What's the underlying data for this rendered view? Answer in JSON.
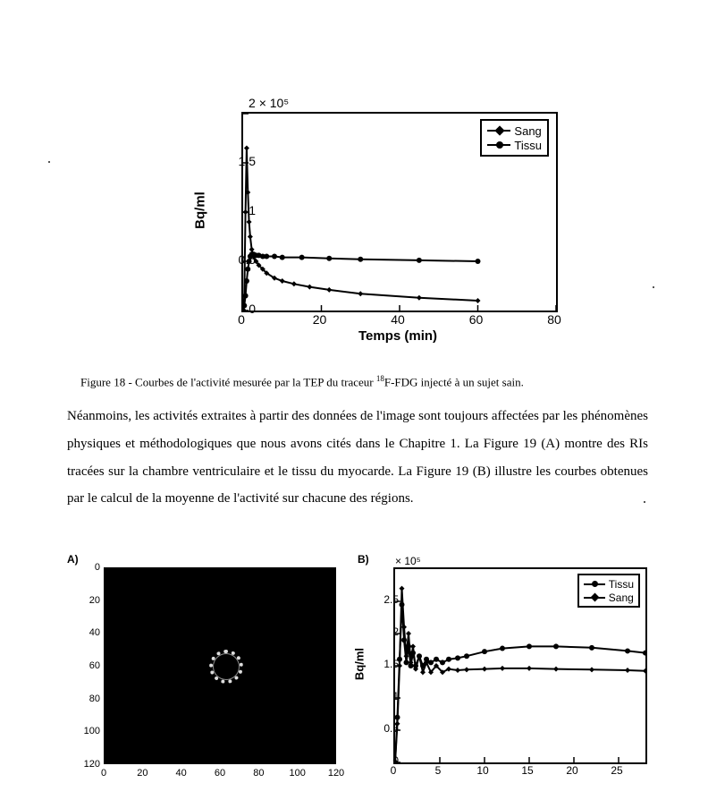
{
  "chart1": {
    "type": "line",
    "multiplier_text": "× 10⁵",
    "xlabel": "Temps (min)",
    "ylabel": "Bq/ml",
    "xlim": [
      0,
      80
    ],
    "ylim": [
      0,
      2
    ],
    "xticks": [
      0,
      20,
      40,
      60,
      80
    ],
    "yticks": [
      0,
      0.5,
      1,
      1.5,
      2
    ],
    "xtick_labels": [
      "0",
      "20",
      "40",
      "60",
      "80"
    ],
    "ytick_labels": [
      "0",
      "0.5",
      "1",
      "1.5",
      "2"
    ],
    "background_color": "#ffffff",
    "border_color": "#000000",
    "line_width": 2,
    "marker_size": 6,
    "series": [
      {
        "name": "Sang",
        "legend_label": "Sang",
        "color": "#000000",
        "marker": "diamond",
        "x": [
          0,
          0.3,
          0.6,
          0.9,
          1.2,
          1.5,
          1.8,
          2.2,
          2.7,
          3.3,
          4,
          5,
          6,
          8,
          10,
          13,
          17,
          22,
          30,
          45,
          60
        ],
        "y": [
          0,
          0.15,
          1.0,
          1.65,
          1.2,
          0.9,
          0.75,
          0.62,
          0.55,
          0.5,
          0.46,
          0.42,
          0.38,
          0.33,
          0.3,
          0.27,
          0.24,
          0.21,
          0.17,
          0.13,
          0.1
        ]
      },
      {
        "name": "Tissu",
        "legend_label": "Tissu",
        "color": "#000000",
        "marker": "dot",
        "x": [
          0,
          0.3,
          0.6,
          0.9,
          1.2,
          1.5,
          1.8,
          2.2,
          2.7,
          3.3,
          4,
          5,
          6,
          8,
          10,
          15,
          22,
          30,
          45,
          60
        ],
        "y": [
          0,
          0.05,
          0.15,
          0.3,
          0.42,
          0.5,
          0.55,
          0.57,
          0.57,
          0.56,
          0.56,
          0.55,
          0.55,
          0.55,
          0.54,
          0.54,
          0.53,
          0.52,
          0.51,
          0.5
        ]
      }
    ]
  },
  "caption1_prefix": "Figure 18 - Courbes de l'activité mesurée par la TEP du traceur ",
  "caption1_isotope": "18",
  "caption1_suffix": "F-FDG injecté à un sujet sain.",
  "body_text": "Néanmoins, les activités extraites à partir des données de l'image sont toujours affectées par les phénomènes physiques et méthodologiques que nous avons cités dans le Chapitre 1. La Figure 19 (A) montre des RIs tracées sur la chambre ventriculaire et le tissu du myocarde. La Figure 19 (B) illustre les courbes obtenues par le calcul de la moyenne de l'activité sur chacune des régions.",
  "panelA": {
    "label": "A)",
    "type": "image",
    "background_color": "#000000",
    "ring_color": "#dddddd",
    "xlim": [
      0,
      120
    ],
    "ylim": [
      0,
      120
    ],
    "xticks": [
      0,
      20,
      40,
      60,
      80,
      100,
      120
    ],
    "yticks": [
      0,
      20,
      40,
      60,
      80,
      100,
      120
    ],
    "xtick_labels": [
      "0",
      "20",
      "40",
      "60",
      "80",
      "100",
      "120"
    ],
    "ytick_labels": [
      "0",
      "20",
      "40",
      "60",
      "80",
      "100",
      "120"
    ]
  },
  "chart2": {
    "label": "B)",
    "type": "line",
    "multiplier_text": "× 10⁵",
    "ylabel": "Bq/ml",
    "xlim": [
      0,
      28
    ],
    "ylim": [
      0,
      3
    ],
    "xticks": [
      0,
      5,
      10,
      15,
      20,
      25
    ],
    "yticks": [
      0,
      0.5,
      1,
      1.5,
      2,
      2.5
    ],
    "xtick_labels": [
      "0",
      "5",
      "10",
      "15",
      "20",
      "25"
    ],
    "ytick_labels": [
      "0",
      "0.5",
      "1",
      "1.5",
      "2",
      "2.5"
    ],
    "background_color": "#ffffff",
    "border_color": "#000000",
    "line_width": 2,
    "marker_size": 6,
    "series": [
      {
        "name": "Tissu",
        "legend_label": "Tissu",
        "color": "#000000",
        "marker": "dot",
        "x": [
          0,
          0.25,
          0.5,
          0.75,
          1,
          1.25,
          1.5,
          1.75,
          2,
          2.3,
          2.7,
          3.1,
          3.5,
          4,
          4.6,
          5.3,
          6,
          7,
          8,
          10,
          12,
          15,
          18,
          22,
          26,
          28
        ],
        "y": [
          0,
          0.7,
          1.6,
          2.45,
          1.9,
          1.55,
          1.8,
          1.5,
          1.7,
          1.5,
          1.65,
          1.5,
          1.6,
          1.55,
          1.6,
          1.55,
          1.6,
          1.62,
          1.65,
          1.72,
          1.77,
          1.8,
          1.8,
          1.78,
          1.73,
          1.7
        ]
      },
      {
        "name": "Sang",
        "legend_label": "Sang",
        "color": "#000000",
        "marker": "diamond",
        "x": [
          0,
          0.25,
          0.5,
          0.75,
          1,
          1.25,
          1.5,
          1.75,
          2,
          2.3,
          2.7,
          3.1,
          3.5,
          4,
          4.6,
          5.3,
          6,
          7,
          8,
          10,
          12,
          15,
          18,
          22,
          26,
          28
        ],
        "y": [
          0,
          0.6,
          1.5,
          2.7,
          2.1,
          1.65,
          2.0,
          1.55,
          1.8,
          1.45,
          1.65,
          1.4,
          1.55,
          1.4,
          1.5,
          1.4,
          1.45,
          1.43,
          1.44,
          1.45,
          1.46,
          1.46,
          1.45,
          1.44,
          1.43,
          1.42
        ]
      }
    ]
  }
}
